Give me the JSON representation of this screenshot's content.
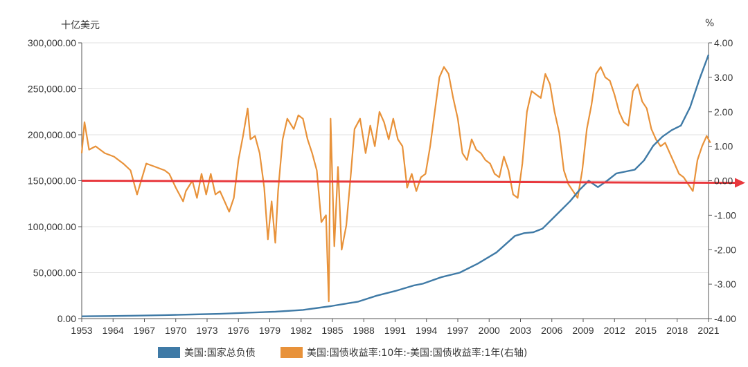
{
  "unit_left": "十亿美元",
  "unit_right": "%",
  "colors": {
    "debt": "#3f7aa6",
    "spread": "#e8923a",
    "arrow": "#e8383d",
    "grid": "#e0e0e0",
    "axis": "#555555"
  },
  "chart_data": {
    "type": "line",
    "x_ticks": [
      "1953",
      "1964",
      "1967",
      "1970",
      "1973",
      "1976",
      "1979",
      "1982",
      "1985",
      "1988",
      "1991",
      "1994",
      "1997",
      "2000",
      "2003",
      "2006",
      "2009",
      "2012",
      "2015",
      "2018",
      "2021"
    ],
    "y_left_ticks": [
      "300,000.00",
      "250,000.00",
      "200,000.00",
      "150,000.00",
      "100,000.00",
      "50,000.00",
      "0.00"
    ],
    "y_right_ticks": [
      "4.00",
      "3.00",
      "2.00",
      "1.00",
      "0.00",
      "-1.00",
      "-2.00",
      "-3.00",
      "-4.00"
    ],
    "ylim_left": [
      0,
      300000
    ],
    "ylim_right": [
      -4,
      4
    ],
    "series": [
      {
        "name": "美国:国家总负债",
        "axis": "left",
        "x": [
          1953,
          1956,
          1959,
          1962,
          1965,
          1968,
          1971,
          1974,
          1977,
          1980,
          1983,
          1985,
          1987,
          1989,
          1990,
          1992,
          1994,
          1996,
          1998,
          2000,
          2001,
          2002,
          2003,
          2004,
          2005,
          2006,
          2007,
          2008,
          2009,
          2010,
          2011,
          2013,
          2014,
          2015,
          2016,
          2017,
          2018,
          2019,
          2020,
          2021
        ],
        "values": [
          2500,
          2800,
          3200,
          3800,
          4500,
          5200,
          6500,
          7500,
          9500,
          13500,
          18500,
          25000,
          30000,
          36000,
          38000,
          45000,
          50000,
          60000,
          72000,
          90000,
          93000,
          94000,
          98000,
          108000,
          118000,
          128000,
          140000,
          150000,
          143000,
          150000,
          158000,
          162000,
          172000,
          188000,
          198000,
          205000,
          210000,
          230000,
          260000,
          287000
        ]
      },
      {
        "name": "美国:国债收益率:10年:-美国:国债收益率:1年(右轴)",
        "axis": "right",
        "x": [
          1953,
          1953.3,
          1953.8,
          1954.5,
          1955.5,
          1956.5,
          1957.5,
          1958.3,
          1959,
          1960,
          1961,
          1962,
          1962.5,
          1963.2,
          1964,
          1964.3,
          1965,
          1965.5,
          1966,
          1966.5,
          1967,
          1967.5,
          1968,
          1968.5,
          1969,
          1969.5,
          1970,
          1970.5,
          1971,
          1971.3,
          1971.8,
          1972.3,
          1972.8,
          1973.2,
          1973.6,
          1974,
          1974.3,
          1974.8,
          1975.3,
          1976,
          1976.5,
          1977,
          1977.5,
          1978,
          1978.5,
          1979,
          1979.5,
          1979.8,
          1980,
          1980.4,
          1980.8,
          1981.2,
          1981.7,
          1982.2,
          1982.6,
          1983.2,
          1983.8,
          1984.3,
          1984.8,
          1985.3,
          1985.8,
          1986.3,
          1986.8,
          1987.3,
          1987.8,
          1988.3,
          1988.8,
          1989.3,
          1989.8,
          1990.3,
          1990.8,
          1991.3,
          1991.8,
          1992.3,
          1992.8,
          1993.3,
          1993.8,
          1994.3,
          1994.8,
          1995.3,
          1995.8,
          1996.3,
          1996.8,
          1997.3,
          1997.8,
          1998.3,
          1998.8,
          1999.3,
          1999.8,
          2000.3,
          2000.8,
          2001.3,
          2001.8,
          2002.3,
          2002.8,
          2003.3,
          2003.8,
          2004.3,
          2004.8,
          2005.3,
          2005.8,
          2006.3,
          2006.8,
          2007.3,
          2007.8,
          2008.3,
          2008.8,
          2009.3,
          2009.8,
          2010.3,
          2010.8,
          2011.3,
          2011.8,
          2012.3,
          2012.8,
          2013.3,
          2013.8,
          2014.3,
          2014.8,
          2015.3,
          2015.8,
          2016.3,
          2016.8,
          2017.3,
          2017.8,
          2018.3,
          2018.8,
          2019.3,
          2019.8,
          2020.3,
          2020.8,
          2021.2
        ],
        "values": [
          0.8,
          1.7,
          0.9,
          1.0,
          0.8,
          0.7,
          0.5,
          0.3,
          -0.4,
          0.5,
          0.4,
          0.3,
          0.2,
          -0.2,
          -0.6,
          -0.3,
          0.0,
          -0.5,
          0.2,
          -0.4,
          0.2,
          -0.4,
          -0.3,
          -0.6,
          -0.9,
          -0.5,
          0.6,
          1.3,
          2.1,
          1.2,
          1.3,
          0.8,
          -0.2,
          -1.7,
          -0.6,
          -1.8,
          -0.3,
          1.2,
          1.8,
          1.5,
          1.9,
          1.8,
          1.2,
          0.8,
          0.3,
          -1.2,
          -1.0,
          -3.5,
          1.8,
          -1.9,
          0.4,
          -2.0,
          -1.3,
          0.2,
          1.5,
          1.8,
          0.8,
          1.6,
          1.0,
          2.0,
          1.7,
          1.2,
          1.8,
          1.2,
          1.0,
          -0.2,
          0.2,
          -0.3,
          0.1,
          0.2,
          1.0,
          2.0,
          3.0,
          3.3,
          3.1,
          2.4,
          1.8,
          0.8,
          0.6,
          1.2,
          0.9,
          0.8,
          0.6,
          0.5,
          0.2,
          0.1,
          0.7,
          0.3,
          -0.4,
          -0.5,
          0.5,
          2.0,
          2.6,
          2.5,
          2.4,
          3.1,
          2.8,
          2.0,
          1.4,
          0.3,
          -0.1,
          -0.3,
          -0.5,
          0.3,
          1.5,
          2.2,
          3.1,
          3.3,
          3.0,
          2.9,
          2.5,
          2.0,
          1.7,
          1.6,
          2.6,
          2.8,
          2.3,
          2.1,
          1.5,
          1.2,
          1.0,
          1.1,
          0.8,
          0.5,
          0.2,
          0.1,
          -0.1,
          -0.3,
          0.6,
          1.0,
          1.3,
          1.1
        ]
      }
    ],
    "annotation": {
      "type": "arrow",
      "axis": "right",
      "y": 0.0
    }
  }
}
